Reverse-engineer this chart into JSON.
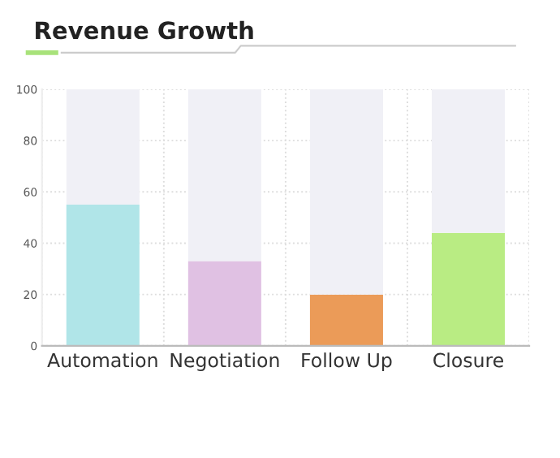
{
  "chart_data": {
    "type": "bar",
    "title": "Revenue Growth",
    "categories": [
      "Automation",
      "Negotiation",
      "Follow Up",
      "Closure"
    ],
    "stacked": true,
    "series": [
      {
        "colors": [
          "#b0e5e8",
          "#e0c1e3",
          "#eb9b58",
          "#b9ec83"
        ],
        "values": [
          55,
          33,
          20,
          44
        ]
      },
      {
        "color": "#f0f0f6",
        "values": [
          45,
          67,
          80,
          56
        ]
      }
    ],
    "ylim": [
      0,
      100
    ],
    "yticks": [
      0,
      20,
      40,
      60,
      80,
      100
    ],
    "grid": true
  }
}
